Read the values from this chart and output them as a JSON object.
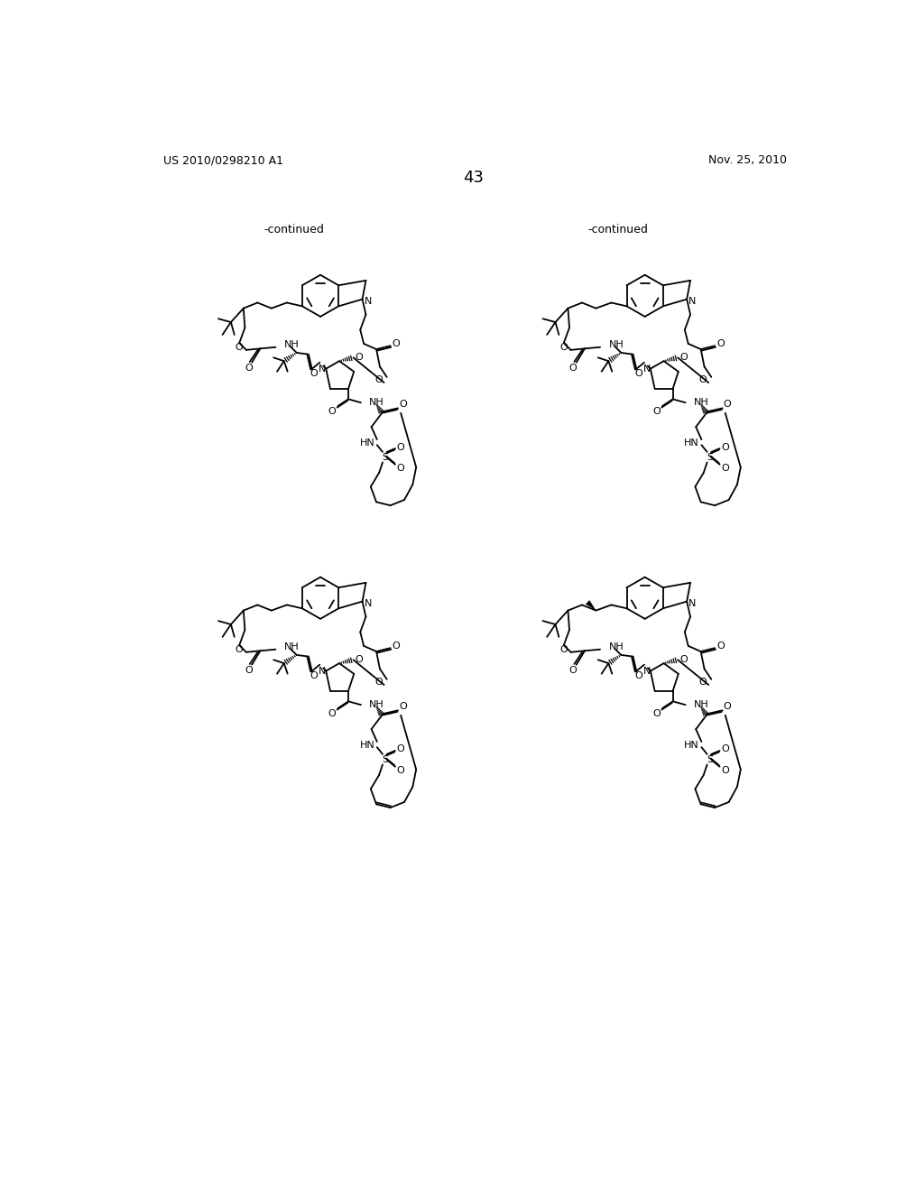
{
  "page_number": "43",
  "patent_number": "US 2010/0298210 A1",
  "patent_date": "Nov. 25, 2010",
  "continued_label": "-continued",
  "background_color": "#ffffff",
  "text_color": "#000000",
  "line_color": "#000000",
  "line_width": 1.3,
  "font_size_header": 9,
  "font_size_page": 13,
  "font_size_atom": 8.0,
  "font_size_continued": 9.0
}
